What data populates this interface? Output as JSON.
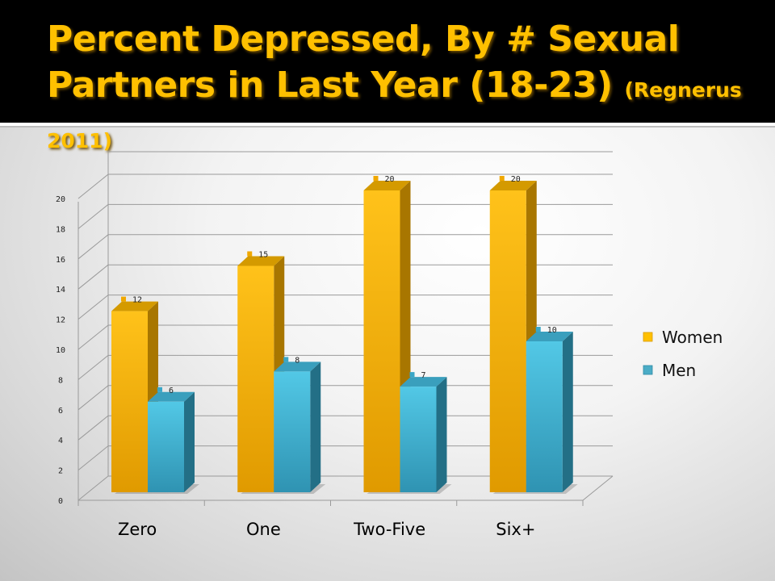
{
  "slide": {
    "title_main": "Percent Depressed, By # Sexual Partners in Last Year (18-23)",
    "title_source": "(Regnerus 2011)"
  },
  "chart_data": {
    "type": "bar",
    "categories": [
      "Zero",
      "One",
      "Two-Five",
      "Six+"
    ],
    "series": [
      {
        "name": "Women",
        "values": [
          12,
          15,
          20,
          20
        ],
        "color": "#ffc000"
      },
      {
        "name": "Men",
        "values": [
          6,
          8,
          7,
          10
        ],
        "color": "#4bacc6"
      }
    ],
    "ylim": [
      0,
      20
    ],
    "yticks": [
      "0",
      "2",
      "4",
      "6",
      "8",
      "10",
      "12",
      "14",
      "16",
      "18",
      "20"
    ],
    "grid": true,
    "legend": "right",
    "data_labels": true
  }
}
